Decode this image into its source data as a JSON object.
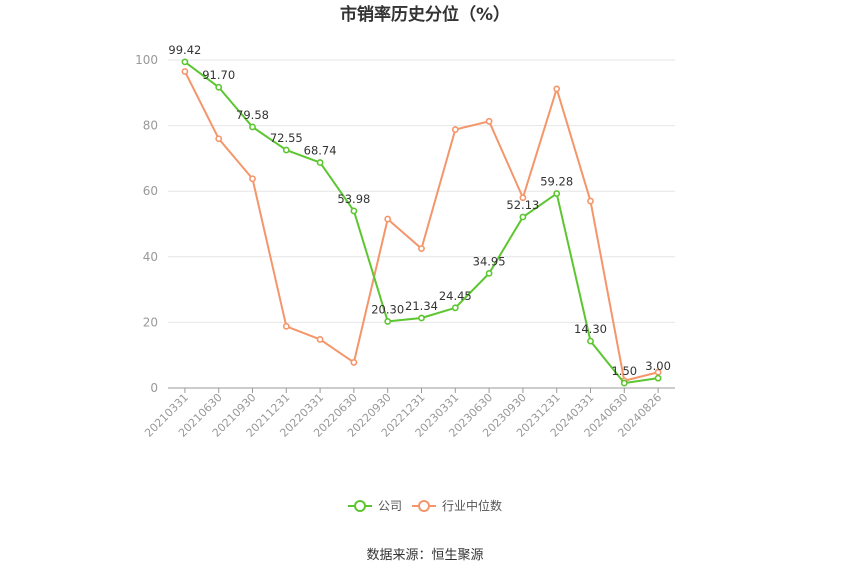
{
  "chart_data": {
    "type": "line",
    "title": "市销率历史分位（%）",
    "categories": [
      "20210331",
      "20210630",
      "20210930",
      "20211231",
      "20220331",
      "20220630",
      "20220930",
      "20221231",
      "20230331",
      "20230630",
      "20230930",
      "20231231",
      "20240331",
      "20240630",
      "20240826"
    ],
    "series": [
      {
        "name": "公司",
        "color": "#5cc630",
        "values": [
          99.42,
          91.7,
          79.58,
          72.55,
          68.74,
          53.98,
          20.3,
          21.34,
          24.45,
          34.95,
          52.13,
          59.28,
          14.3,
          1.5,
          3.0
        ],
        "labels": [
          "99.42",
          "91.70",
          "79.58",
          "72.55",
          "68.74",
          "53.98",
          "20.30",
          "21.34",
          "24.45",
          "34.95",
          "52.13",
          "59.28",
          "14.30",
          "1.50",
          "3.00"
        ]
      },
      {
        "name": "行业中位数",
        "color": "#f4956a",
        "values": [
          96.5,
          76.0,
          63.8,
          18.8,
          14.8,
          7.8,
          51.5,
          42.5,
          78.8,
          81.3,
          58.0,
          91.2,
          57.0,
          2.2,
          4.8
        ]
      }
    ],
    "y_ticks": [
      "0",
      "20",
      "40",
      "60",
      "80",
      "100"
    ],
    "ylim": [
      0,
      100
    ],
    "grid": true,
    "legend_position": "bottom"
  },
  "source": "数据来源：恒生聚源"
}
